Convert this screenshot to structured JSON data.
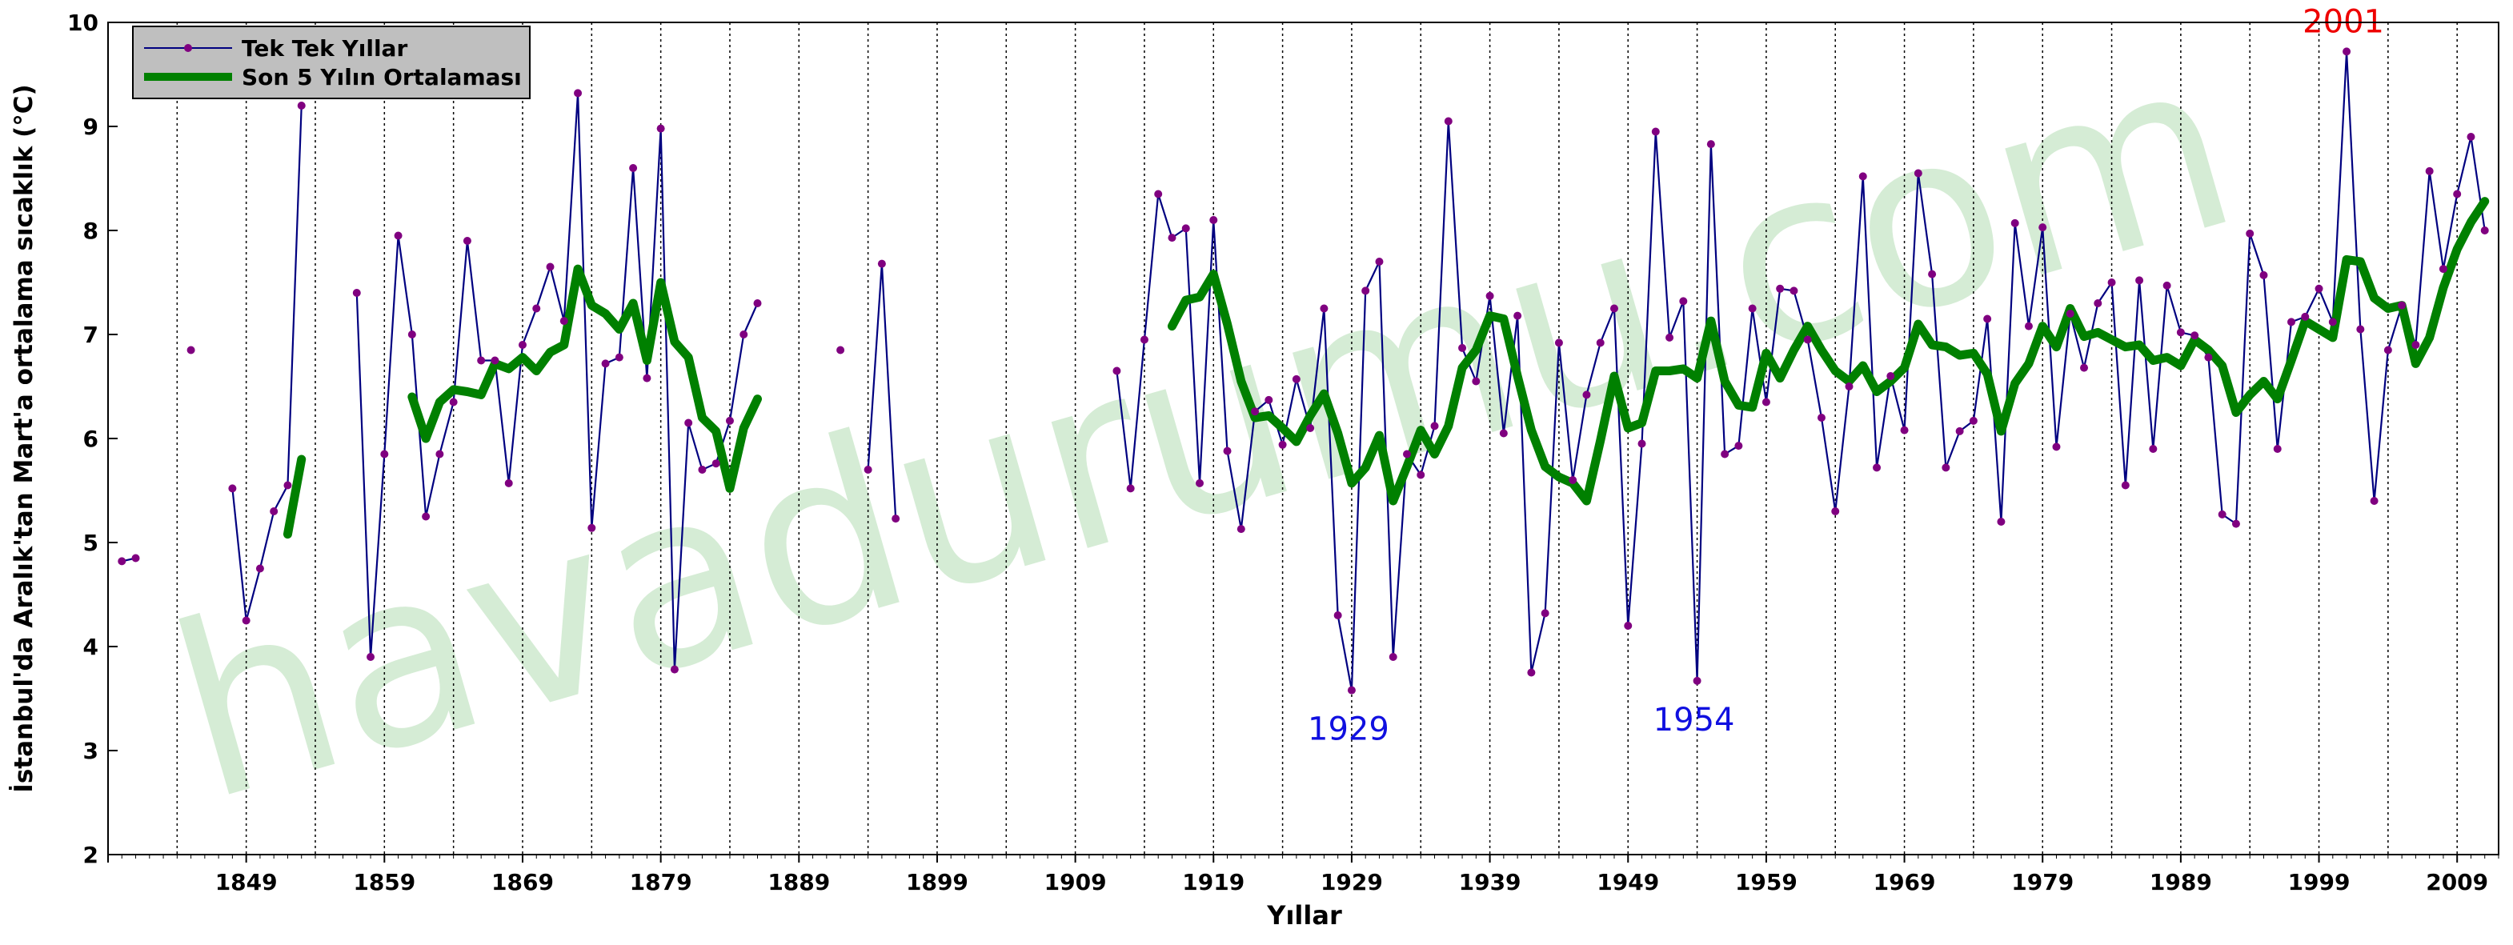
{
  "chart_data": {
    "type": "line",
    "xlabel": "Yıllar",
    "ylabel": "İstanbul'da Aralık'tan Mart'a ortalama sıcaklık (°C)",
    "xlim": [
      1839,
      2012
    ],
    "ylim": [
      2,
      10
    ],
    "x_ticks": [
      1849,
      1859,
      1869,
      1879,
      1889,
      1899,
      1909,
      1919,
      1929,
      1939,
      1949,
      1959,
      1969,
      1979,
      1989,
      1999,
      2009
    ],
    "y_ticks": [
      2,
      3,
      4,
      5,
      6,
      7,
      8,
      9,
      10
    ],
    "x_vgrid_dotted": [
      1844,
      1849,
      1854,
      1859,
      1864,
      1869,
      1874,
      1879,
      1884,
      1889,
      1894,
      1899,
      1904,
      1909,
      1914,
      1919,
      1924,
      1929,
      1934,
      1939,
      1944,
      1949,
      1954,
      1959,
      1964,
      1969,
      1974,
      1979,
      1984,
      1989,
      1994,
      1999,
      2004,
      2009
    ],
    "grid": "vertical dotted lines",
    "legend_position": "top-left",
    "series": [
      {
        "name": "Tek Tek Yıllar",
        "color": "#000080",
        "marker_color": "#800080",
        "style": "line-with-markers",
        "x": [
          1840,
          1841,
          1845,
          1848,
          1849,
          1850,
          1851,
          1852,
          1853,
          1857,
          1858,
          1859,
          1860,
          1861,
          1862,
          1863,
          1864,
          1865,
          1866,
          1867,
          1868,
          1869,
          1870,
          1871,
          1872,
          1873,
          1874,
          1875,
          1876,
          1877,
          1878,
          1879,
          1880,
          1881,
          1882,
          1883,
          1884,
          1885,
          1886,
          1892,
          1894,
          1895,
          1896,
          1912,
          1913,
          1914,
          1915,
          1916,
          1917,
          1918,
          1919,
          1920,
          1921,
          1922,
          1923,
          1924,
          1925,
          1926,
          1927,
          1928,
          1929,
          1930,
          1931,
          1932,
          1933,
          1934,
          1935,
          1936,
          1937,
          1938,
          1939,
          1940,
          1941,
          1942,
          1943,
          1944,
          1945,
          1946,
          1947,
          1948,
          1949,
          1950,
          1951,
          1952,
          1953,
          1954,
          1955,
          1956,
          1957,
          1958,
          1959,
          1960,
          1961,
          1962,
          1963,
          1964,
          1965,
          1966,
          1967,
          1968,
          1969,
          1970,
          1971,
          1972,
          1973,
          1974,
          1975,
          1976,
          1977,
          1978,
          1979,
          1980,
          1981,
          1982,
          1983,
          1984,
          1985,
          1986,
          1987,
          1988,
          1989,
          1990,
          1991,
          1992,
          1993,
          1994,
          1995,
          1996,
          1997,
          1998,
          1999,
          2000,
          2001,
          2002,
          2003,
          2004,
          2005,
          2006,
          2007,
          2008,
          2009,
          2010,
          2011
        ],
        "y": [
          4.82,
          4.85,
          6.85,
          5.52,
          4.25,
          4.75,
          5.3,
          5.55,
          9.2,
          7.4,
          3.9,
          5.85,
          7.95,
          7.0,
          5.25,
          5.85,
          6.35,
          7.9,
          6.75,
          6.75,
          5.57,
          6.9,
          7.25,
          7.65,
          7.13,
          9.32,
          5.14,
          6.72,
          6.78,
          8.6,
          6.58,
          8.98,
          3.78,
          6.15,
          5.7,
          5.76,
          6.17,
          7.0,
          7.3,
          6.85,
          5.7,
          7.68,
          5.23,
          6.65,
          5.52,
          6.95,
          8.35,
          7.93,
          8.02,
          5.57,
          8.1,
          5.88,
          5.13,
          6.26,
          6.37,
          5.94,
          6.57,
          6.1,
          7.25,
          4.3,
          3.58,
          7.42,
          7.7,
          3.9,
          5.85,
          5.65,
          6.12,
          9.05,
          6.87,
          6.55,
          7.37,
          6.05,
          7.18,
          3.75,
          4.32,
          6.92,
          5.6,
          6.42,
          6.92,
          7.25,
          4.2,
          5.95,
          8.95,
          6.97,
          7.32,
          3.67,
          8.83,
          5.85,
          5.93,
          7.25,
          6.35,
          7.44,
          7.42,
          6.95,
          6.2,
          5.3,
          6.5,
          8.52,
          5.72,
          6.6,
          6.08,
          8.55,
          7.58,
          5.72,
          6.07,
          6.17,
          7.15,
          5.2,
          8.07,
          7.08,
          8.03,
          5.92,
          7.2,
          6.68,
          7.3,
          7.5,
          5.55,
          7.52,
          5.9,
          7.47,
          7.02,
          6.99,
          6.78,
          5.27,
          5.18,
          7.97,
          7.57,
          5.9,
          7.12,
          7.17,
          7.44,
          7.12,
          9.72,
          7.05,
          5.4,
          6.85,
          7.28,
          6.9,
          8.57,
          7.63,
          8.35,
          8.9,
          8.0
        ]
      },
      {
        "name": "Son 5 Yılın Ortalaması",
        "color": "#008000",
        "style": "thick-line",
        "x": [
          1852,
          1853,
          1861,
          1862,
          1863,
          1864,
          1865,
          1866,
          1867,
          1868,
          1869,
          1870,
          1871,
          1872,
          1873,
          1874,
          1875,
          1876,
          1877,
          1878,
          1879,
          1880,
          1881,
          1882,
          1883,
          1884,
          1885,
          1886,
          1916,
          1917,
          1918,
          1919,
          1920,
          1921,
          1922,
          1923,
          1924,
          1925,
          1926,
          1927,
          1928,
          1929,
          1930,
          1931,
          1932,
          1933,
          1934,
          1935,
          1936,
          1937,
          1938,
          1939,
          1940,
          1941,
          1942,
          1943,
          1944,
          1945,
          1946,
          1947,
          1948,
          1949,
          1950,
          1951,
          1952,
          1953,
          1954,
          1955,
          1956,
          1957,
          1958,
          1959,
          1960,
          1961,
          1962,
          1963,
          1964,
          1965,
          1966,
          1967,
          1968,
          1969,
          1970,
          1971,
          1972,
          1973,
          1974,
          1975,
          1976,
          1977,
          1978,
          1979,
          1980,
          1981,
          1982,
          1983,
          1984,
          1985,
          1986,
          1987,
          1988,
          1989,
          1990,
          1991,
          1992,
          1993,
          1994,
          1995,
          1996,
          1997,
          1998,
          1999,
          2000,
          2001,
          2002,
          2003,
          2004,
          2005,
          2006,
          2007,
          2008,
          2009,
          2010,
          2011
        ],
        "y": [
          5.08,
          5.8,
          6.4,
          6.0,
          6.35,
          6.47,
          6.45,
          6.42,
          6.72,
          6.67,
          6.78,
          6.65,
          6.83,
          6.9,
          7.63,
          7.28,
          7.2,
          7.05,
          7.3,
          6.75,
          7.5,
          6.93,
          6.78,
          6.2,
          6.07,
          5.52,
          6.1,
          6.38,
          7.08,
          7.33,
          7.36,
          7.58,
          7.1,
          6.55,
          6.2,
          6.22,
          6.1,
          5.97,
          6.22,
          6.43,
          6.05,
          5.57,
          5.72,
          6.03,
          5.4,
          5.73,
          6.08,
          5.85,
          6.12,
          6.68,
          6.85,
          7.18,
          7.15,
          6.6,
          6.08,
          5.73,
          5.63,
          5.57,
          5.4,
          5.98,
          6.6,
          6.1,
          6.15,
          6.65,
          6.65,
          6.67,
          6.58,
          7.13,
          6.55,
          6.32,
          6.3,
          6.82,
          6.58,
          6.85,
          7.08,
          6.85,
          6.65,
          6.55,
          6.7,
          6.45,
          6.55,
          6.68,
          7.1,
          6.9,
          6.88,
          6.8,
          6.82,
          6.62,
          6.07,
          6.53,
          6.72,
          7.08,
          6.88,
          7.25,
          6.98,
          7.02,
          6.95,
          6.88,
          6.9,
          6.75,
          6.78,
          6.7,
          6.95,
          6.85,
          6.7,
          6.25,
          6.42,
          6.55,
          6.38,
          6.75,
          7.13,
          7.05,
          6.97,
          7.72,
          7.7,
          7.35,
          7.25,
          7.28,
          6.72,
          6.97,
          7.45,
          7.82,
          8.08,
          8.28
        ]
      }
    ],
    "legend": [
      {
        "label": "Tek Tek Yıllar",
        "series": 0
      },
      {
        "label": "Son 5 Yılın Ortalaması",
        "series": 1
      }
    ],
    "annotations": [
      {
        "text": "1929",
        "x": 1929,
        "y": 3.58,
        "color": "#1010e0",
        "placement": "below"
      },
      {
        "text": "1954",
        "x": 1954,
        "y": 3.67,
        "color": "#1010e0",
        "placement": "below"
      },
      {
        "text": "2001",
        "x": 2001,
        "y": 9.72,
        "color": "#ee0000",
        "placement": "above"
      }
    ],
    "watermark": {
      "text": "havadurumu.com",
      "color": "#c8e6c8"
    }
  }
}
